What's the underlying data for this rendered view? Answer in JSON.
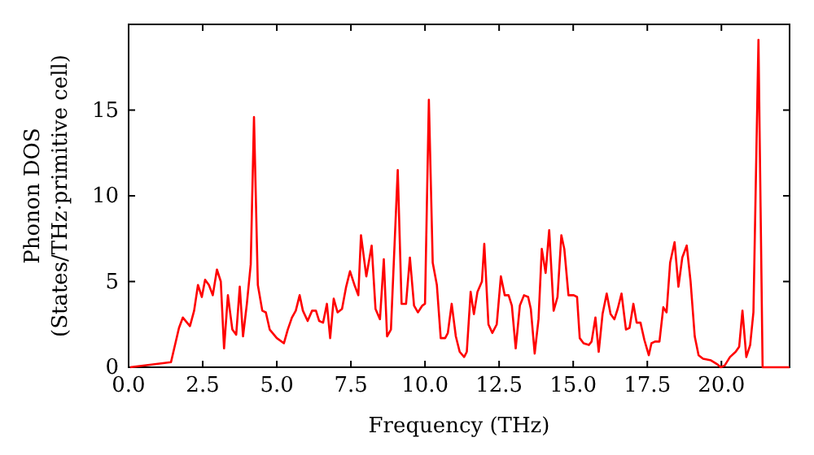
{
  "chart_data": {
    "type": "line",
    "xlabel": "Frequency (THz)",
    "ylabel": "Phonon DOS\n(States/THz·primitive cell)",
    "xlim": [
      0,
      22.3
    ],
    "ylim": [
      0,
      20
    ],
    "xticks": [
      {
        "value": 0,
        "label": "0.0"
      },
      {
        "value": 2.5,
        "label": "2.5"
      },
      {
        "value": 5,
        "label": "5.0"
      },
      {
        "value": 7.5,
        "label": "7.5"
      },
      {
        "value": 10,
        "label": "10.0"
      },
      {
        "value": 12.5,
        "label": "12.5"
      },
      {
        "value": 15,
        "label": "15.0"
      },
      {
        "value": 17.5,
        "label": "17.5"
      },
      {
        "value": 20,
        "label": "20.0"
      }
    ],
    "yticks": [
      0,
      5,
      10,
      15
    ],
    "grid": false,
    "marker": "none",
    "line_style": "solid",
    "series": [
      {
        "color": "#ff0000",
        "x": [
          0.05,
          1.43,
          1.7,
          1.83,
          2.07,
          2.21,
          2.34,
          2.47,
          2.58,
          2.71,
          2.84,
          2.98,
          3.11,
          3.22,
          3.35,
          3.5,
          3.63,
          3.75,
          3.86,
          3.99,
          4.12,
          4.23,
          4.36,
          4.51,
          4.63,
          4.76,
          5.0,
          5.24,
          5.37,
          5.51,
          5.64,
          5.77,
          5.88,
          6.04,
          6.19,
          6.32,
          6.43,
          6.56,
          6.69,
          6.8,
          6.92,
          7.05,
          7.2,
          7.34,
          7.47,
          7.62,
          7.75,
          7.84,
          8.02,
          8.2,
          8.33,
          8.48,
          8.61,
          8.72,
          8.85,
          9.08,
          9.21,
          9.36,
          9.49,
          9.63,
          9.76,
          9.91,
          10.0,
          10.13,
          10.26,
          10.4,
          10.53,
          10.68,
          10.77,
          10.9,
          11.04,
          11.17,
          11.32,
          11.41,
          11.54,
          11.65,
          11.77,
          11.92,
          12.0,
          12.14,
          12.27,
          12.42,
          12.56,
          12.69,
          12.82,
          12.93,
          13.06,
          13.2,
          13.34,
          13.48,
          13.57,
          13.7,
          13.83,
          13.94,
          14.07,
          14.19,
          14.34,
          14.47,
          14.6,
          14.7,
          14.84,
          15.02,
          15.13,
          15.22,
          15.35,
          15.53,
          15.62,
          15.75,
          15.86,
          15.99,
          16.13,
          16.26,
          16.39,
          16.5,
          16.63,
          16.78,
          16.9,
          17.03,
          17.14,
          17.27,
          17.4,
          17.55,
          17.64,
          17.76,
          17.91,
          18.04,
          18.15,
          18.27,
          18.42,
          18.55,
          18.68,
          18.83,
          18.96,
          19.1,
          19.23,
          19.38,
          19.65,
          19.84,
          19.98,
          20.11,
          20.29,
          20.48,
          20.6,
          20.71,
          20.84,
          20.97,
          21.08,
          21.25,
          21.39,
          22.3
        ],
        "values": [
          0,
          0.3,
          2.3,
          2.9,
          2.4,
          3.3,
          4.8,
          4.1,
          5.1,
          4.8,
          4.2,
          5.7,
          5.0,
          1.1,
          4.2,
          2.2,
          1.9,
          4.7,
          1.8,
          3.7,
          6.0,
          14.6,
          4.8,
          3.3,
          3.2,
          2.2,
          1.7,
          1.4,
          2.2,
          2.9,
          3.3,
          4.2,
          3.3,
          2.7,
          3.3,
          3.3,
          2.7,
          2.6,
          3.7,
          1.7,
          4.0,
          3.2,
          3.4,
          4.7,
          5.6,
          4.8,
          4.2,
          7.7,
          5.3,
          7.1,
          3.4,
          2.8,
          6.3,
          1.8,
          2.2,
          11.5,
          3.7,
          3.7,
          6.4,
          3.6,
          3.2,
          3.6,
          3.7,
          15.6,
          6.1,
          4.8,
          1.7,
          1.7,
          2.0,
          3.7,
          1.8,
          0.9,
          0.6,
          0.9,
          4.4,
          3.1,
          4.4,
          5.0,
          7.2,
          2.5,
          2.0,
          2.5,
          5.3,
          4.2,
          4.2,
          3.6,
          1.1,
          3.6,
          4.2,
          4.1,
          3.4,
          0.8,
          2.8,
          6.9,
          5.5,
          8.0,
          3.3,
          4.1,
          7.7,
          6.9,
          4.2,
          4.2,
          4.1,
          1.7,
          1.4,
          1.3,
          1.5,
          2.9,
          0.9,
          3.1,
          4.3,
          3.1,
          2.8,
          3.4,
          4.3,
          2.2,
          2.3,
          3.7,
          2.6,
          2.6,
          1.6,
          0.7,
          1.4,
          1.5,
          1.5,
          3.5,
          3.2,
          6.1,
          7.3,
          4.7,
          6.4,
          7.1,
          5.0,
          1.8,
          0.7,
          0.5,
          0.4,
          0.2,
          0,
          0.1,
          0.6,
          0.9,
          1.2,
          3.3,
          0.6,
          1.3,
          3.2,
          19.1,
          0,
          0
        ]
      }
    ]
  }
}
